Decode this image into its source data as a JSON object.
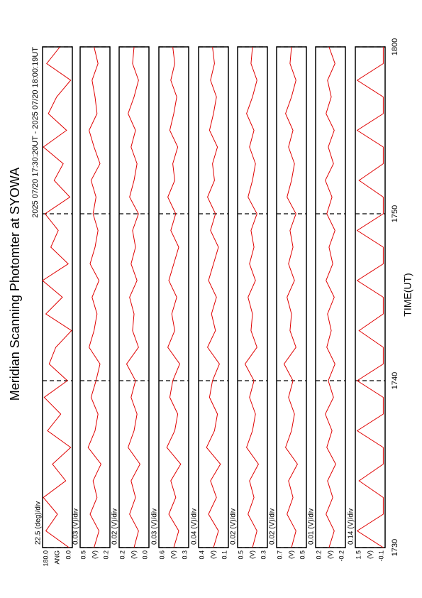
{
  "chart_data": {
    "type": "line",
    "title": "Meridian Scanning Photomter at SYOWA",
    "subtitle": "2025 07/20 17:30:20UT - 2025 07/20 18:00:19UT",
    "xlabel": "TIME(UT)",
    "color": "#e00000",
    "x": [
      1050,
      1051,
      1052,
      1053,
      1054,
      1055,
      1056,
      1057,
      1058,
      1059,
      1060,
      1061,
      1062,
      1063,
      1064,
      1065,
      1066,
      1067,
      1068,
      1069,
      1070,
      1071,
      1072,
      1073,
      1074,
      1075,
      1076,
      1077,
      1078,
      1079,
      1080
    ],
    "xlim": [
      1050,
      1080
    ],
    "xticks": [
      {
        "value": 1050,
        "label": "1730"
      },
      {
        "value": 1060,
        "label": "1740"
      },
      {
        "value": 1070,
        "label": "1750"
      },
      {
        "value": 1080,
        "label": "1800"
      }
    ],
    "panels": [
      {
        "scale_label": "22.5 (deg)/div",
        "unit_label": "ANG",
        "ylim": [
          0,
          180
        ],
        "yticks": [
          {
            "value": 180,
            "label": "180.0"
          },
          {
            "value": 0,
            "label": "0.0"
          }
        ],
        "values": [
          20,
          160,
          90,
          175,
          40,
          120,
          10,
          150,
          70,
          170,
          30,
          140,
          100,
          5,
          160,
          60,
          180,
          25,
          130,
          85,
          165,
          15,
          110,
          55,
          175,
          35,
          145,
          95,
          10,
          155,
          75
        ]
      },
      {
        "scale_label": "0.03 (V)/div",
        "unit_label": "(V)",
        "ylim": [
          0.2,
          0.5
        ],
        "yticks": [
          0.5,
          0.2
        ],
        "values": [
          0.36,
          0.31,
          0.4,
          0.33,
          0.37,
          0.29,
          0.42,
          0.35,
          0.32,
          0.39,
          0.34,
          0.3,
          0.41,
          0.36,
          0.33,
          0.38,
          0.31,
          0.4,
          0.35,
          0.32,
          0.37,
          0.34,
          0.39,
          0.3,
          0.36,
          0.41,
          0.33,
          0.35,
          0.38,
          0.32,
          0.36
        ]
      },
      {
        "scale_label": "0.02 (V)/div",
        "unit_label": "(V)",
        "ylim": [
          0,
          0.2
        ],
        "yticks": [
          0.2,
          {
            "value": 0,
            "label": "0.0"
          }
        ],
        "values": [
          0.1,
          0.07,
          0.13,
          0.09,
          0.12,
          0.06,
          0.14,
          0.1,
          0.08,
          0.12,
          0.09,
          0.15,
          0.07,
          0.11,
          0.1,
          0.13,
          0.08,
          0.12,
          0.09,
          0.11,
          0.07,
          0.13,
          0.1,
          0.08,
          0.12,
          0.09,
          0.14,
          0.1,
          0.07,
          0.11,
          0.1
        ]
      },
      {
        "scale_label": "0.03 (V)/div",
        "unit_label": "(V)",
        "ylim": [
          0.3,
          0.6
        ],
        "yticks": [
          0.6,
          0.3
        ],
        "values": [
          0.45,
          0.4,
          0.5,
          0.43,
          0.48,
          0.38,
          0.52,
          0.44,
          0.41,
          0.49,
          0.46,
          0.39,
          0.51,
          0.44,
          0.47,
          0.42,
          0.5,
          0.45,
          0.4,
          0.48,
          0.43,
          0.51,
          0.44,
          0.46,
          0.41,
          0.49,
          0.45,
          0.42,
          0.48,
          0.44,
          0.46
        ]
      },
      {
        "scale_label": "0.04 (V)/div",
        "unit_label": "(V)",
        "ylim": [
          0.1,
          0.4
        ],
        "yticks": [
          0.4,
          0.1
        ],
        "values": [
          0.25,
          0.2,
          0.3,
          0.22,
          0.28,
          0.18,
          0.32,
          0.24,
          0.21,
          0.29,
          0.26,
          0.19,
          0.31,
          0.23,
          0.27,
          0.22,
          0.3,
          0.25,
          0.2,
          0.28,
          0.23,
          0.31,
          0.24,
          0.26,
          0.21,
          0.29,
          0.25,
          0.22,
          0.28,
          0.24,
          0.26
        ]
      },
      {
        "scale_label": "0.02 (V)/div",
        "unit_label": "(V)",
        "ylim": [
          0.3,
          0.5
        ],
        "yticks": [
          0.5,
          0.3
        ],
        "values": [
          0.4,
          0.37,
          0.43,
          0.39,
          0.42,
          0.36,
          0.44,
          0.4,
          0.38,
          0.42,
          0.39,
          0.45,
          0.37,
          0.41,
          0.4,
          0.43,
          0.38,
          0.42,
          0.39,
          0.41,
          0.37,
          0.43,
          0.4,
          0.38,
          0.42,
          0.39,
          0.44,
          0.4,
          0.37,
          0.41,
          0.4
        ]
      },
      {
        "scale_label": "0.02 (V)/div",
        "unit_label": "(V)",
        "ylim": [
          0.5,
          0.7
        ],
        "yticks": [
          0.7,
          0.5
        ],
        "values": [
          0.6,
          0.57,
          0.63,
          0.59,
          0.62,
          0.56,
          0.64,
          0.6,
          0.58,
          0.62,
          0.59,
          0.65,
          0.57,
          0.61,
          0.6,
          0.63,
          0.58,
          0.62,
          0.59,
          0.61,
          0.57,
          0.63,
          0.6,
          0.58,
          0.62,
          0.59,
          0.64,
          0.6,
          0.57,
          0.61,
          0.6
        ]
      },
      {
        "scale_label": "0.01 (V)/div",
        "unit_label": "(V)",
        "ylim": [
          -0.2,
          0.2
        ],
        "yticks": [
          0.2,
          -0.2
        ],
        "values": [
          0.02,
          -0.05,
          0.06,
          -0.03,
          0.04,
          -0.07,
          0.05,
          -0.02,
          0.07,
          -0.04,
          0.03,
          -0.06,
          0.05,
          -0.01,
          0.04,
          -0.05,
          0.06,
          -0.03,
          0.02,
          -0.06,
          0.05,
          -0.02,
          0.07,
          -0.04,
          0.03,
          -0.05,
          0.06,
          -0.01,
          0.04,
          -0.06,
          0.02
        ]
      },
      {
        "scale_label": "0.14 (V)/div",
        "unit_label": "(V)",
        "ylim": [
          -0.1,
          1.5
        ],
        "yticks": [
          1.5,
          -0.1
        ],
        "values": [
          0.0,
          1.4,
          0.0,
          0.0,
          1.3,
          0.0,
          0.0,
          1.4,
          0.0,
          0.0,
          1.4,
          0.0,
          0.0,
          1.3,
          0.0,
          0.0,
          1.4,
          0.0,
          0.0,
          1.4,
          0.0,
          0.0,
          1.3,
          0.0,
          0.0,
          1.4,
          0.0,
          0.0,
          1.4,
          0.0,
          0.0
        ]
      }
    ]
  }
}
